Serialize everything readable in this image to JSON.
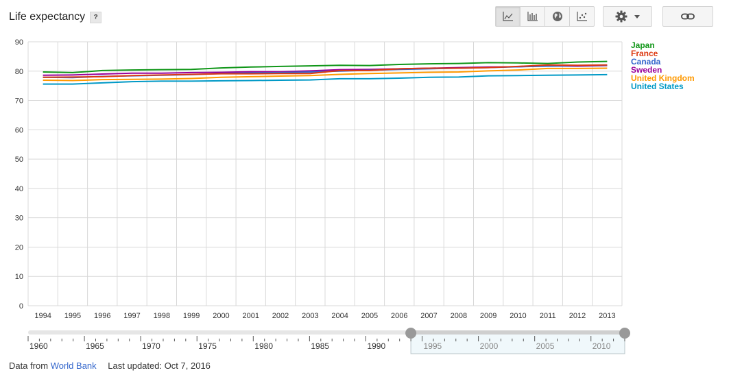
{
  "header": {
    "title": "Life expectancy",
    "help_label": "?"
  },
  "toolbar": {
    "buttons": [
      {
        "name": "line-chart",
        "icon": "line-chart-icon",
        "active": true
      },
      {
        "name": "bar-chart",
        "icon": "bar-chart-icon",
        "active": false
      },
      {
        "name": "map",
        "icon": "globe-icon",
        "active": false
      },
      {
        "name": "scatter-chart",
        "icon": "scatter-chart-icon",
        "active": false
      }
    ],
    "settings_icon": "gear-icon",
    "link_icon": "link-icon"
  },
  "chart_data": {
    "type": "line",
    "x": [
      1994,
      1995,
      1996,
      1997,
      1998,
      1999,
      2000,
      2001,
      2002,
      2003,
      2004,
      2005,
      2006,
      2007,
      2008,
      2009,
      2010,
      2011,
      2012,
      2013
    ],
    "ylim": [
      0,
      90
    ],
    "yticks": [
      0,
      10,
      20,
      30,
      40,
      50,
      60,
      70,
      80,
      90
    ],
    "grid": true,
    "legend_position": "right",
    "series": [
      {
        "name": "Japan",
        "color": "#109618",
        "values": [
          79.7,
          79.5,
          80.2,
          80.4,
          80.5,
          80.6,
          81.1,
          81.4,
          81.6,
          81.8,
          82.0,
          81.9,
          82.3,
          82.5,
          82.6,
          82.9,
          82.8,
          82.6,
          83.1,
          83.3
        ]
      },
      {
        "name": "France",
        "color": "#dc3912",
        "values": [
          77.9,
          78.0,
          78.1,
          78.5,
          78.7,
          78.9,
          79.1,
          79.1,
          79.2,
          79.2,
          80.2,
          80.2,
          80.8,
          81.0,
          81.0,
          81.2,
          81.6,
          82.1,
          82.0,
          82.1
        ]
      },
      {
        "name": "Canada",
        "color": "#3366cc",
        "values": [
          77.9,
          77.8,
          78.2,
          78.4,
          78.6,
          78.8,
          79.2,
          79.4,
          79.5,
          79.7,
          80.0,
          80.3,
          80.6,
          80.8,
          81.0,
          81.2,
          81.5,
          81.7,
          81.9,
          82.0
        ]
      },
      {
        "name": "Sweden",
        "color": "#990099",
        "values": [
          78.6,
          78.7,
          79.0,
          79.3,
          79.3,
          79.5,
          79.6,
          79.8,
          79.8,
          80.1,
          80.5,
          80.6,
          80.8,
          81.0,
          81.2,
          81.4,
          81.5,
          81.8,
          81.7,
          81.9
        ]
      },
      {
        "name": "United Kingdom",
        "color": "#ff9900",
        "values": [
          76.9,
          76.8,
          77.1,
          77.2,
          77.3,
          77.5,
          77.9,
          78.1,
          78.3,
          78.5,
          78.9,
          79.2,
          79.4,
          79.6,
          79.7,
          80.1,
          80.4,
          80.9,
          80.9,
          81.0
        ]
      },
      {
        "name": "United States",
        "color": "#0099c6",
        "values": [
          75.6,
          75.6,
          76.0,
          76.4,
          76.6,
          76.6,
          76.7,
          76.8,
          76.9,
          77.0,
          77.4,
          77.4,
          77.6,
          77.9,
          78.0,
          78.4,
          78.5,
          78.6,
          78.7,
          78.8
        ]
      }
    ]
  },
  "range_selector": {
    "start_year": 1960,
    "end_year": 2013,
    "window_start": 1994,
    "window_end": 2013,
    "outer_labels": [
      "1960",
      "1965",
      "1970",
      "1975",
      "1980",
      "1985",
      "1990"
    ],
    "inner_labels": [
      "1995",
      "2000",
      "2005",
      "2010"
    ]
  },
  "footer": {
    "data_from": "Data from",
    "source_link": "World Bank",
    "last_updated": "Last updated: Oct 7, 2016"
  }
}
